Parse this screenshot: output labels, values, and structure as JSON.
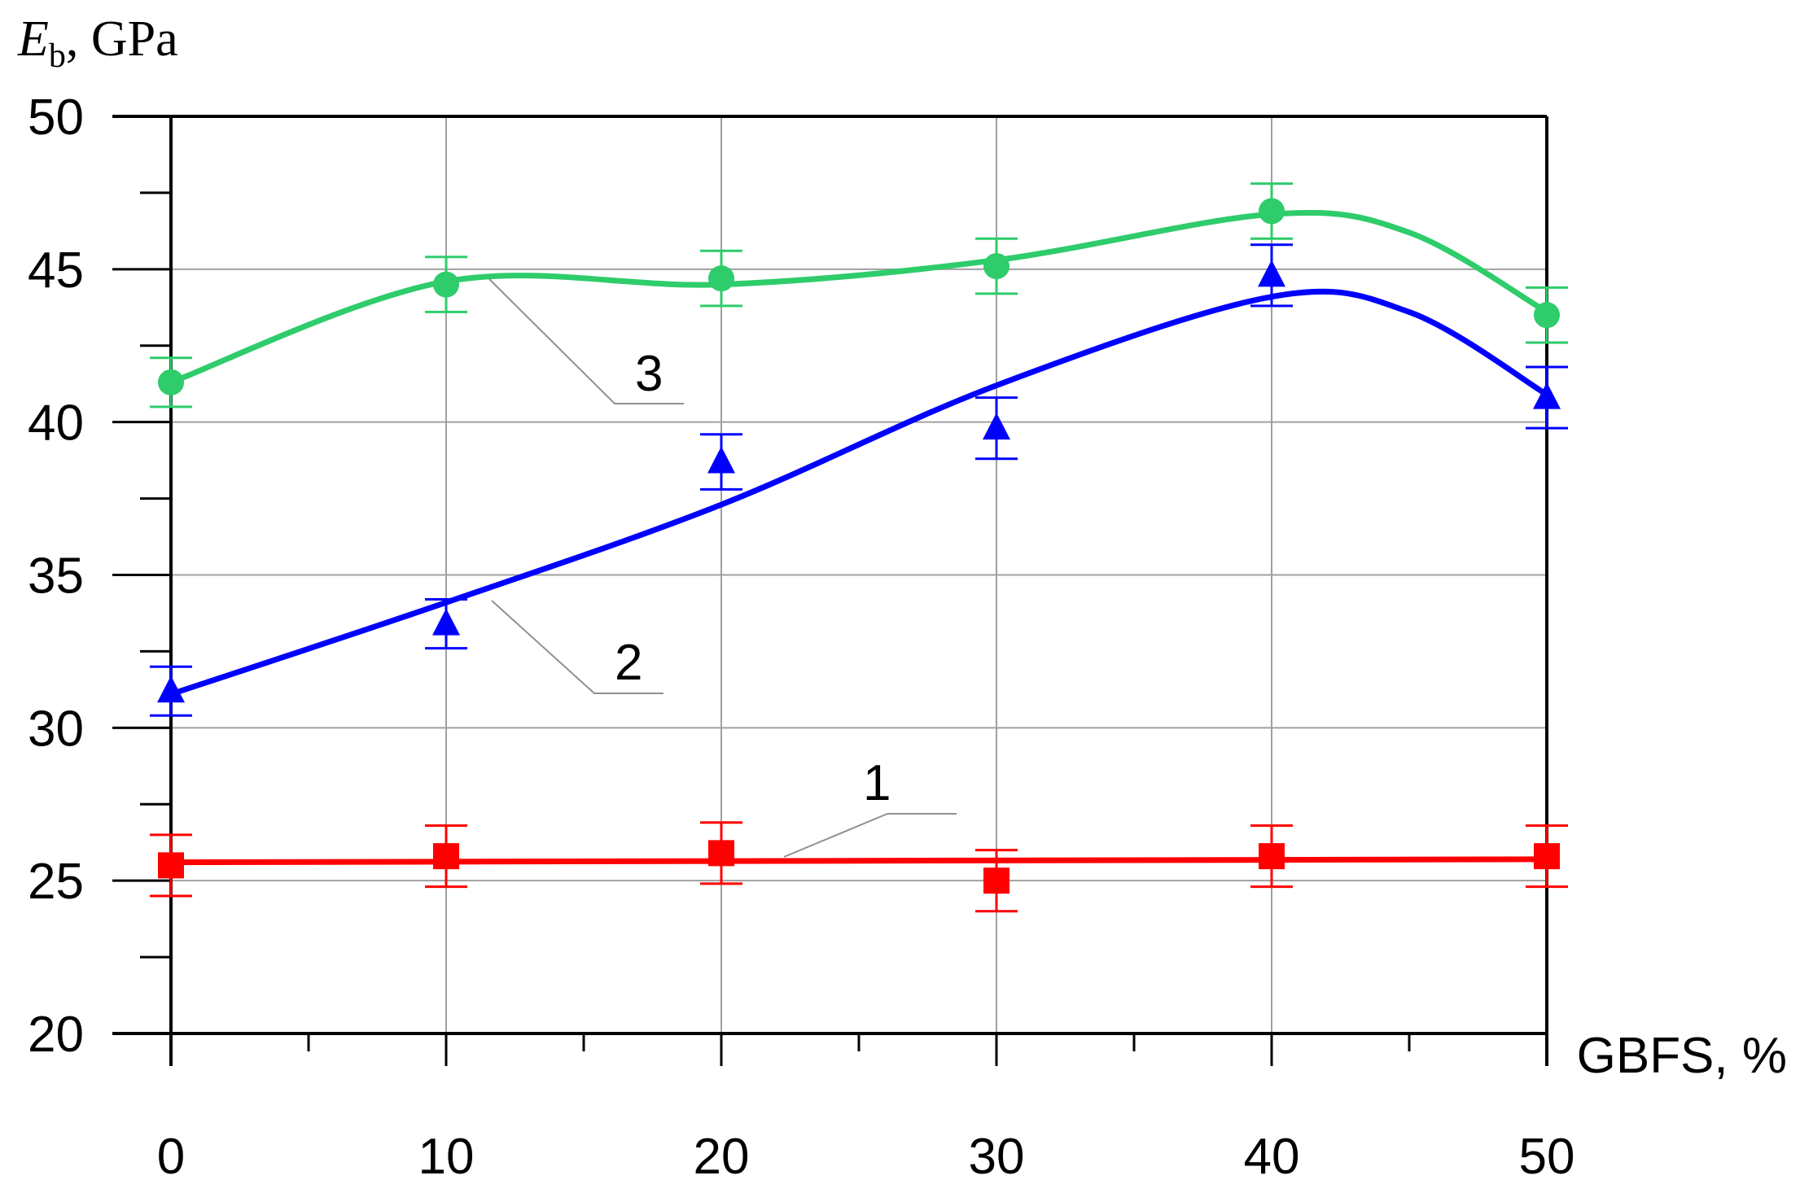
{
  "chart_data": {
    "type": "line",
    "title": "",
    "ylabel": {
      "symbol": "E",
      "subscript": "b",
      "unit": ", GPa"
    },
    "xlabel": "GBFS, %",
    "xlim": [
      0,
      50
    ],
    "ylim": [
      20,
      50
    ],
    "x_ticks": [
      0,
      10,
      20,
      30,
      40,
      50
    ],
    "x_minor_ticks": [
      5,
      15,
      25,
      35,
      45
    ],
    "y_ticks": [
      20,
      25,
      30,
      35,
      40,
      45,
      50
    ],
    "y_minor_ticks": [
      22.5,
      27.5,
      32.5,
      37.5,
      42.5,
      47.5
    ],
    "x_tick_labels": [
      "0",
      "10",
      "20",
      "30",
      "40",
      "50"
    ],
    "y_tick_labels": [
      "20",
      "25",
      "30",
      "35",
      "40",
      "45",
      "50"
    ],
    "grid": true,
    "series": [
      {
        "name": "1",
        "color": "#ff0000",
        "marker": "square",
        "x": [
          0,
          10,
          20,
          30,
          40,
          50
        ],
        "values": [
          25.5,
          25.8,
          25.9,
          25.0,
          25.8,
          25.8
        ],
        "error": [
          1.0,
          1.0,
          1.0,
          1.0,
          1.0,
          1.0
        ],
        "fit": [
          [
            0,
            25.6
          ],
          [
            50,
            25.7
          ]
        ]
      },
      {
        "name": "2",
        "color": "#0000ff",
        "marker": "triangle",
        "x": [
          0,
          10,
          20,
          30,
          40,
          50
        ],
        "values": [
          31.2,
          33.4,
          38.7,
          39.8,
          44.8,
          40.8
        ],
        "error": [
          0.8,
          0.8,
          0.9,
          1.0,
          1.0,
          1.0
        ],
        "fit": [
          [
            0,
            31.1
          ],
          [
            10,
            34.1
          ],
          [
            20,
            37.3
          ],
          [
            30,
            41.2
          ],
          [
            40,
            44.1
          ],
          [
            45,
            43.6
          ],
          [
            50,
            40.9
          ]
        ]
      },
      {
        "name": "3",
        "color": "#2ecc6a",
        "marker": "circle",
        "x": [
          0,
          10,
          20,
          30,
          40,
          50
        ],
        "values": [
          41.3,
          44.5,
          44.7,
          45.1,
          46.9,
          43.5
        ],
        "error": [
          0.8,
          0.9,
          0.9,
          0.9,
          0.9,
          0.9
        ],
        "fit": [
          [
            0,
            41.3
          ],
          [
            10,
            44.6
          ],
          [
            20,
            44.5
          ],
          [
            30,
            45.3
          ],
          [
            40,
            46.8
          ],
          [
            45,
            46.2
          ],
          [
            50,
            43.6
          ]
        ]
      }
    ],
    "curve_labels": [
      "1",
      "2",
      "3"
    ]
  }
}
